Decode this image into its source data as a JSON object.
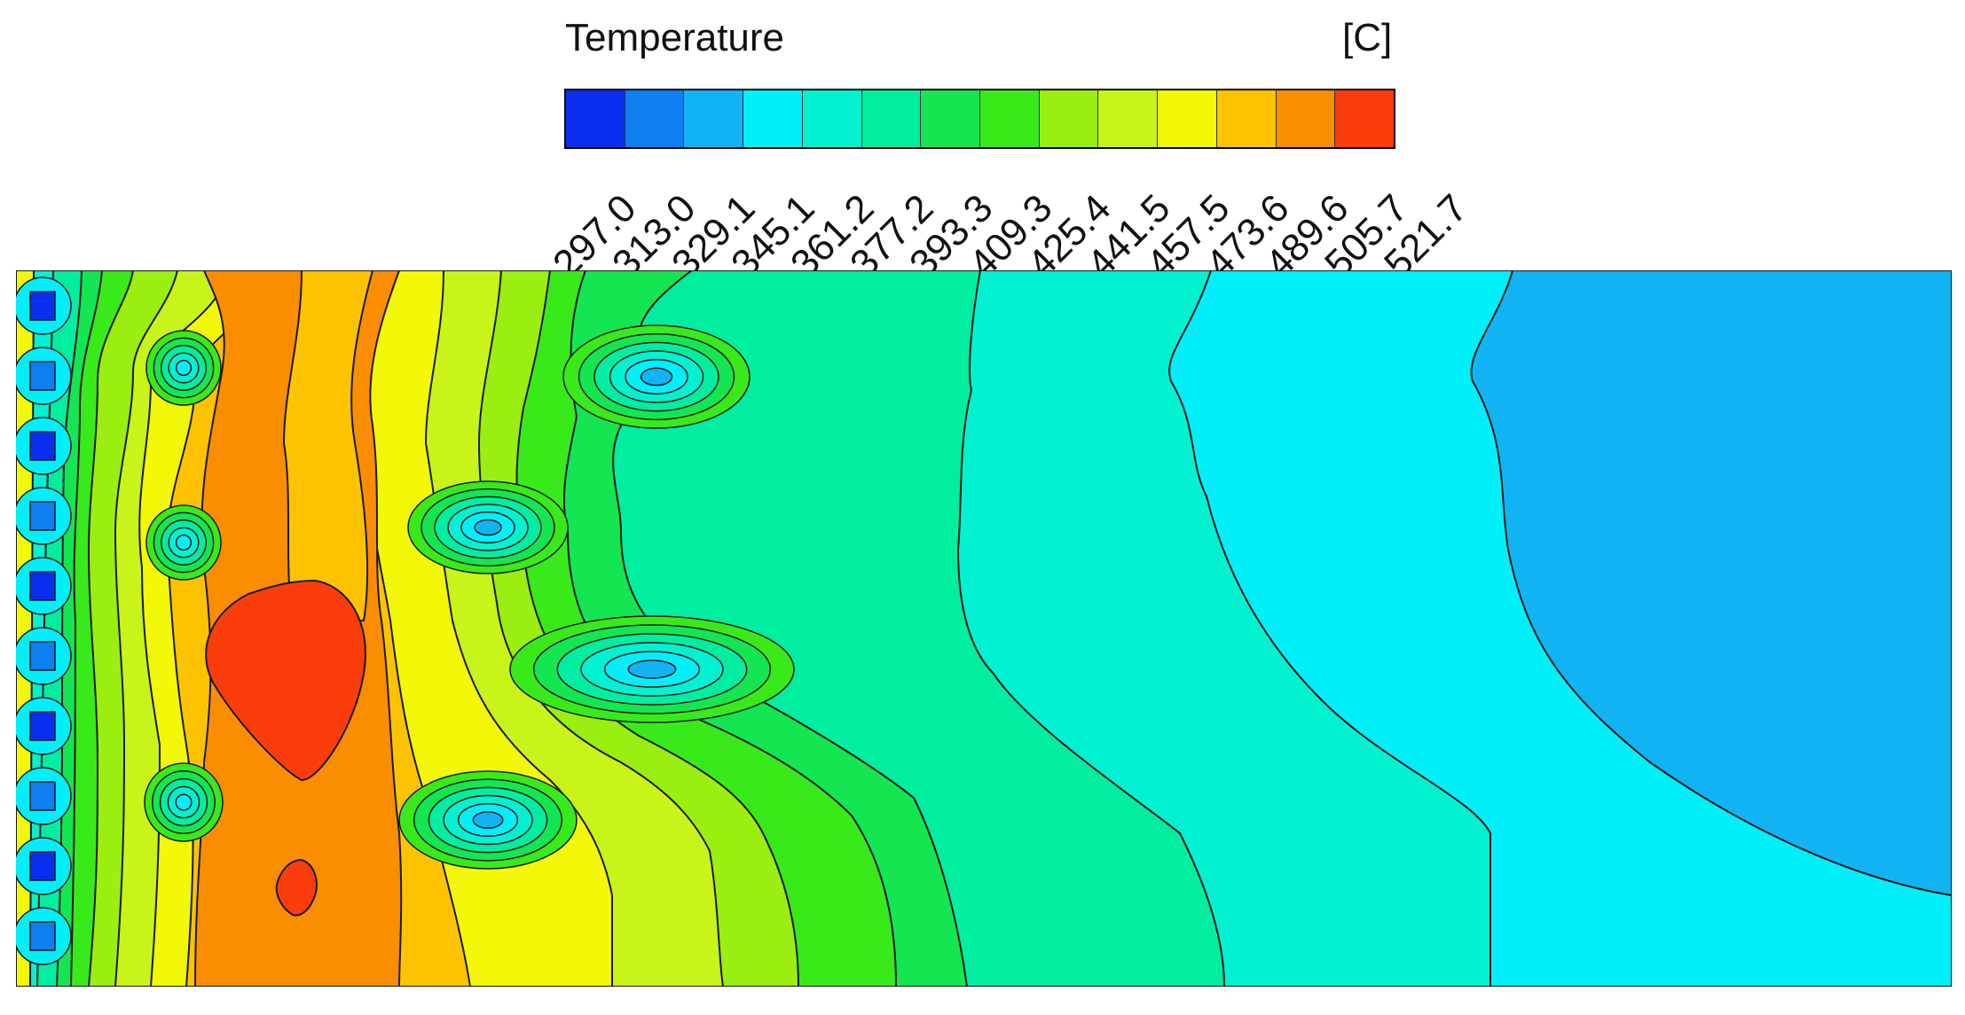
{
  "chart_data": {
    "type": "heatmap",
    "title": "",
    "legend": {
      "title": "Temperature",
      "unit": "[C]",
      "placement": "top-center",
      "levels": [
        "297.0",
        "313.0",
        "329.1",
        "345.1",
        "361.2",
        "377.2",
        "393.3",
        "409.3",
        "425.4",
        "441.5",
        "457.5",
        "473.6",
        "489.6",
        "505.7",
        "521.7"
      ],
      "colors": [
        "#0a2ef0",
        "#0d7ff0",
        "#10b4f2",
        "#00f0fa",
        "#00f2d0",
        "#00eea0",
        "#13e651",
        "#39ea1a",
        "#9aee10",
        "#c8f41a",
        "#f2f805",
        "#fdc300",
        "#fb8d00",
        "#fb3d0c"
      ]
    },
    "field": {
      "background_color": "#00eea0",
      "cold_spots_along_left_wall": 10,
      "description_free": true
    }
  }
}
